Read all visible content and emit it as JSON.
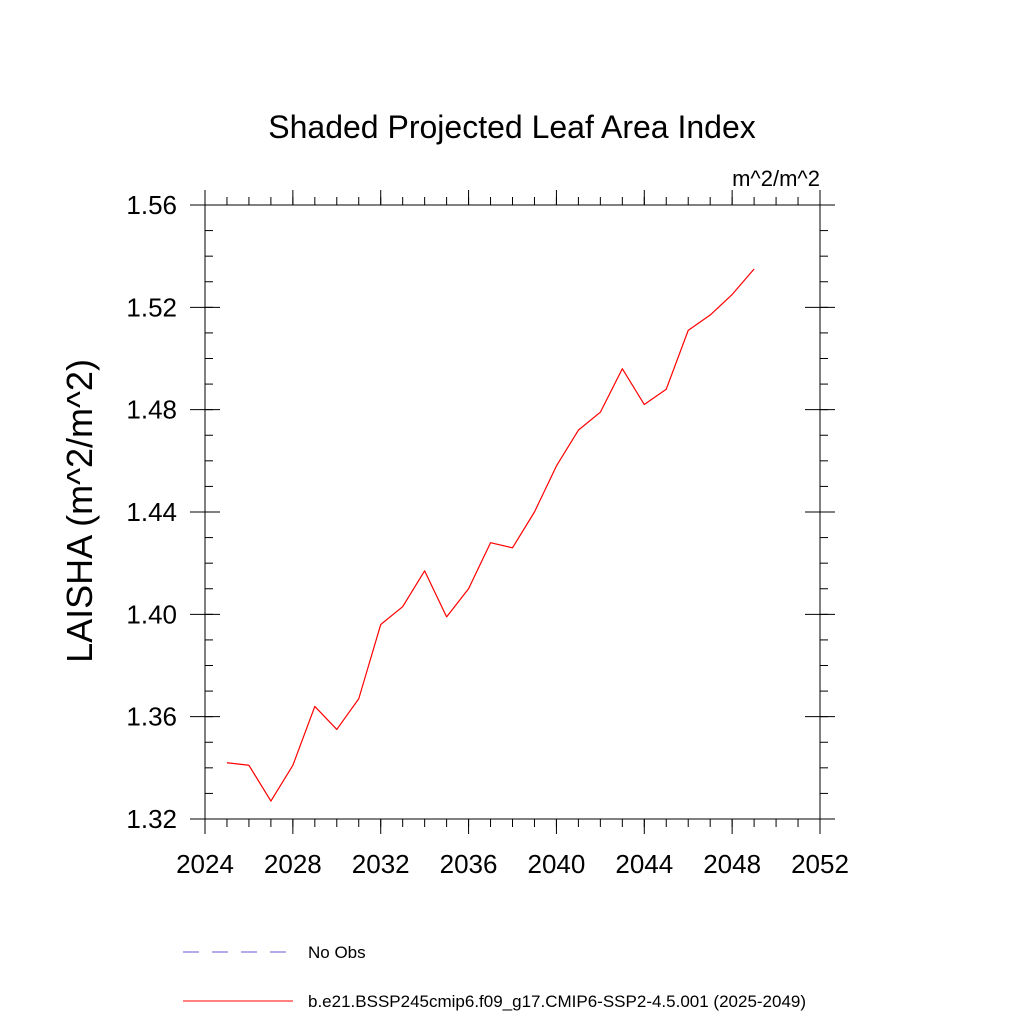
{
  "chart_data": {
    "type": "line",
    "title": "Shaded Projected Leaf Area Index",
    "units_label": "m^2/m^2",
    "xlabel": "",
    "ylabel": "LAISHA  (m^2/m^2)",
    "xlim": [
      2024,
      2052
    ],
    "ylim": [
      1.32,
      1.56
    ],
    "x_major_ticks": [
      2024,
      2028,
      2032,
      2036,
      2040,
      2044,
      2048,
      2052
    ],
    "x_tick_labels": [
      "2024",
      "2028",
      "2032",
      "2036",
      "2040",
      "2044",
      "2048",
      "2052"
    ],
    "x_minor_step": 1,
    "y_major_ticks": [
      1.32,
      1.36,
      1.4,
      1.44,
      1.48,
      1.52,
      1.56
    ],
    "y_tick_labels": [
      "1.32",
      "1.36",
      "1.40",
      "1.44",
      "1.48",
      "1.52",
      "1.56"
    ],
    "y_minor_step": 0.01,
    "grid": false,
    "legend_position": "bottom",
    "series": [
      {
        "name": "b.e21.BSSP245cmip6.f09_g17.CMIP6-SSP2-4.5.001 (2025-2049)",
        "color": "#ff0000",
        "line_style": "solid",
        "x": [
          2025,
          2026,
          2027,
          2028,
          2029,
          2030,
          2031,
          2032,
          2033,
          2034,
          2035,
          2036,
          2037,
          2038,
          2039,
          2040,
          2041,
          2042,
          2043,
          2044,
          2045,
          2046,
          2047,
          2048,
          2049
        ],
        "values": [
          1.342,
          1.341,
          1.327,
          1.341,
          1.364,
          1.355,
          1.367,
          1.396,
          1.403,
          1.417,
          1.399,
          1.41,
          1.428,
          1.426,
          1.44,
          1.458,
          1.472,
          1.479,
          1.496,
          1.482,
          1.488,
          1.511,
          1.517,
          1.525,
          1.535
        ]
      }
    ],
    "legend": [
      {
        "label": "No Obs",
        "color": "#6a5acd",
        "line_style": "dashed"
      },
      {
        "label": "b.e21.BSSP245cmip6.f09_g17.CMIP6-SSP2-4.5.001 (2025-2049)",
        "color": "#ff0000",
        "line_style": "solid"
      }
    ]
  }
}
